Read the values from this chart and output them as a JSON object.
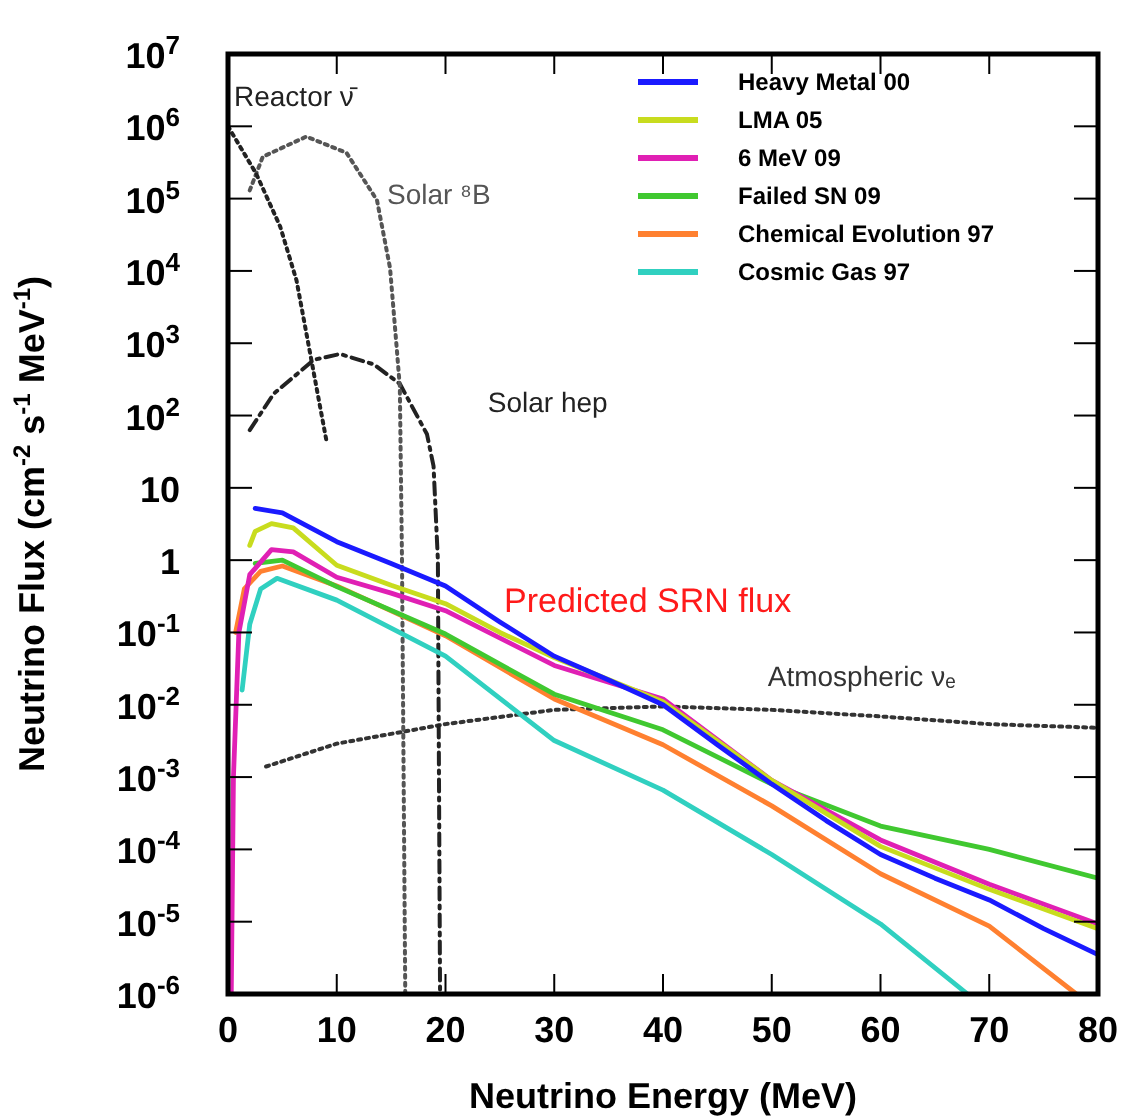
{
  "chart_data": {
    "type": "line",
    "xlabel": "Neutrino Energy (MeV)",
    "ylabel": "Neutrino Flux (cm$^{-2}$ s$^{-1}$ MeV$^{-1}$)",
    "annotations": [
      "Predicted SRN flux"
    ],
    "log": "y",
    "xlim": [
      0,
      80
    ],
    "xticks": [
      0,
      10,
      20,
      30,
      40,
      50,
      60,
      70,
      80
    ],
    "ylim": [
      1e-06,
      10000000.0
    ],
    "yticks": [
      {
        "value": 1e-06,
        "label": "10$^{-6}$"
      },
      {
        "value": 1e-05,
        "label": "10$^{-5}$"
      },
      {
        "value": 0.0001,
        "label": "10$^{-4}$"
      },
      {
        "value": 0.001,
        "label": "10$^{-3}$"
      },
      {
        "value": 0.01,
        "label": "10$^{-2}$"
      },
      {
        "value": 0.1,
        "label": "10$^{-1}$"
      },
      1,
      10,
      {
        "value": 100,
        "label": "10$^{2}$"
      },
      {
        "value": 1000,
        "label": "10$^{3}$"
      },
      {
        "value": 10000.0,
        "label": "10$^{4}$"
      },
      {
        "value": 100000.0,
        "label": "10$^{5}$"
      },
      {
        "value": 1000000.0,
        "label": "10$^{6}$"
      },
      {
        "value": 10000000.0,
        "label": "10$^{7}$"
      }
    ],
    "grid": false,
    "legend": "top right",
    "series": [
      {
        "name": "Heavy Metal 00",
        "color": "#1a1aff",
        "line_style": "solid",
        "x": [
          2.5,
          5,
          10,
          15,
          20,
          25,
          30,
          35,
          40,
          45,
          50,
          55,
          60,
          65,
          70,
          75,
          80
        ],
        "values": [
          5.2,
          4.5,
          1.8,
          0.9,
          0.44,
          0.14,
          0.047,
          0.022,
          0.01,
          0.0028,
          0.0008,
          0.00025,
          8.5e-05,
          4e-05,
          2e-05,
          8e-06,
          3.5e-06
        ]
      },
      {
        "name": "LMA 05",
        "color": "#c8dc1e",
        "line_style": "solid",
        "x": [
          2,
          2.5,
          4,
          6,
          10,
          15,
          20,
          25,
          30,
          40,
          50,
          60,
          70,
          80
        ],
        "values": [
          1.6,
          2.5,
          3.2,
          2.8,
          0.85,
          0.45,
          0.25,
          0.1,
          0.045,
          0.011,
          0.0009,
          0.00011,
          2.8e-05,
          8e-06
        ]
      },
      {
        "name": "6 MeV 09",
        "color": "#e020b4",
        "line_style": "solid",
        "x": [
          0.3,
          0.5,
          1,
          2,
          4,
          6,
          10,
          15,
          20,
          30,
          40,
          50,
          60,
          70,
          80
        ],
        "values": [
          1e-06,
          0.001,
          0.1,
          0.63,
          1.4,
          1.3,
          0.58,
          0.35,
          0.2,
          0.035,
          0.012,
          0.0009,
          0.000135,
          3.3e-05,
          9.3e-06
        ]
      },
      {
        "name": "Failed SN 09",
        "color": "#40c830",
        "line_style": "solid",
        "x": [
          2.5,
          5,
          10,
          20,
          30,
          40,
          50,
          60,
          70,
          80
        ],
        "values": [
          0.9,
          1.0,
          0.43,
          0.095,
          0.014,
          0.0045,
          0.0008,
          0.00021,
          0.0001,
          4e-05
        ]
      },
      {
        "name": "Chemical Evolution 97",
        "color": "#ff8030",
        "line_style": "solid",
        "x": [
          0.7,
          1.5,
          3,
          5,
          10,
          20,
          30,
          40,
          50,
          60,
          70,
          78
        ],
        "values": [
          0.1,
          0.4,
          0.7,
          0.83,
          0.44,
          0.09,
          0.012,
          0.0028,
          0.0004,
          4.6e-05,
          8.7e-06,
          1e-06
        ]
      },
      {
        "name": "Cosmic Gas 97",
        "color": "#30d0c0",
        "line_style": "solid",
        "x": [
          1.3,
          2,
          3,
          4.5,
          10,
          20,
          30,
          40,
          50,
          60,
          68
        ],
        "values": [
          0.016,
          0.13,
          0.4,
          0.56,
          0.28,
          0.047,
          0.0032,
          0.00066,
          8.5e-05,
          9.3e-06,
          1e-06
        ]
      },
      {
        "name": "Reactor ν̄",
        "color": "#222222",
        "line_style": "dotted",
        "x": [
          0,
          2.6,
          4.8,
          6.3,
          7.9,
          9.1
        ],
        "values": [
          1000000.0,
          220000.0,
          41000.0,
          7400.0,
          380,
          41
        ]
      },
      {
        "name": "Solar ⁸B",
        "color": "#555555",
        "line_style": "dotted",
        "x": [
          2,
          3.2,
          7.2,
          10.9,
          13.7,
          14.9,
          15.5,
          15.8,
          16,
          16.3
        ],
        "values": [
          130000.0,
          380000.0,
          720000.0,
          430000.0,
          95000.0,
          11000.0,
          910,
          250,
          1,
          1e-06
        ]
      },
      {
        "name": "Solar hep",
        "color": "#222222",
        "line_style": "dashed",
        "x": [
          2,
          4.2,
          7.9,
          10.3,
          13.4,
          15.8,
          18.3,
          18.9,
          19.3,
          19.5
        ],
        "values": [
          63,
          200,
          590,
          710,
          510,
          275,
          55,
          20,
          1,
          1e-06
        ]
      },
      {
        "name": "Atmospheric νₑ",
        "color": "#333333",
        "line_style": "dotted",
        "x": [
          3.5,
          10,
          20,
          30,
          40,
          50,
          60,
          70,
          80
        ],
        "values": [
          0.0014,
          0.0029,
          0.0054,
          0.0085,
          0.0095,
          0.0085,
          0.0069,
          0.0054,
          0.0048
        ]
      }
    ]
  }
}
